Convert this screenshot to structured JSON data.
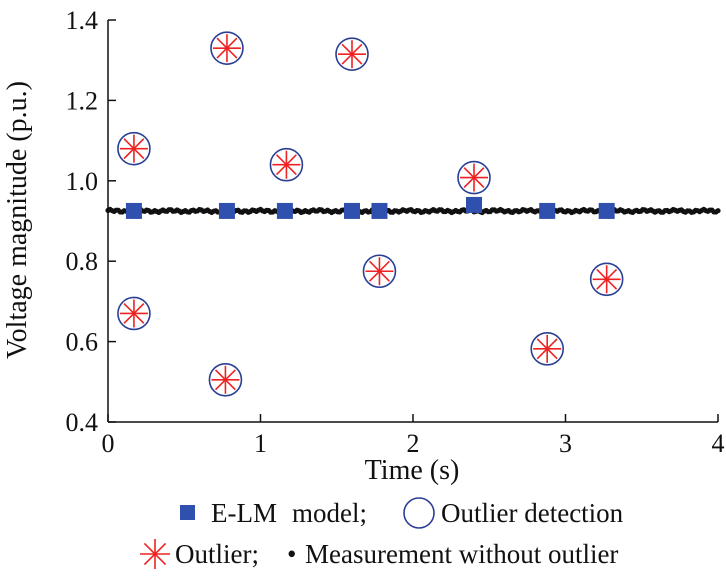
{
  "chart_data": {
    "type": "scatter",
    "title": "",
    "xlabel": "Time (s)",
    "ylabel": "Voltage magnitude (p.u.)",
    "xlim": [
      0,
      4
    ],
    "ylim": [
      0.4,
      1.4
    ],
    "xticks": [
      "0",
      "1",
      "2",
      "3",
      "4"
    ],
    "yticks": [
      "0.4",
      "0.6",
      "0.8",
      "1.0",
      "1.2",
      "1.4"
    ],
    "grid": false,
    "legend_position": "bottom",
    "legend_line1_tail": "model;",
    "legend_line2_tail": "Measurement without outlier",
    "colors": {
      "measurement": "#111111",
      "model": "#3050b0",
      "detection": "#2a3f94",
      "outlier": "#ee2222"
    },
    "series": [
      {
        "name": "E-LM",
        "marker": "square",
        "x": [
          0.17,
          0.78,
          1.16,
          1.6,
          1.78,
          2.4,
          2.88,
          3.27
        ],
        "y": [
          0.925,
          0.925,
          0.925,
          0.925,
          0.925,
          0.94,
          0.925,
          0.925
        ]
      },
      {
        "name": "Outlier detection",
        "marker": "circle",
        "x": [
          0.17,
          0.17,
          0.78,
          0.77,
          1.17,
          1.6,
          1.78,
          2.4,
          2.88,
          3.27
        ],
        "y": [
          1.08,
          0.67,
          1.33,
          0.505,
          1.04,
          1.315,
          0.775,
          1.008,
          0.582,
          0.755
        ]
      },
      {
        "name": "Outlier;",
        "marker": "asterisk",
        "x": [
          0.17,
          0.17,
          0.78,
          0.77,
          1.17,
          1.6,
          1.78,
          2.4,
          2.88,
          3.27
        ],
        "y": [
          1.08,
          0.67,
          1.33,
          0.505,
          1.04,
          1.315,
          0.775,
          1.008,
          0.582,
          0.755
        ]
      },
      {
        "name": "•",
        "marker": "dot",
        "x_range": [
          0,
          4
        ],
        "base_value": 0.925,
        "noise_amplitude": 0.004
      }
    ]
  }
}
